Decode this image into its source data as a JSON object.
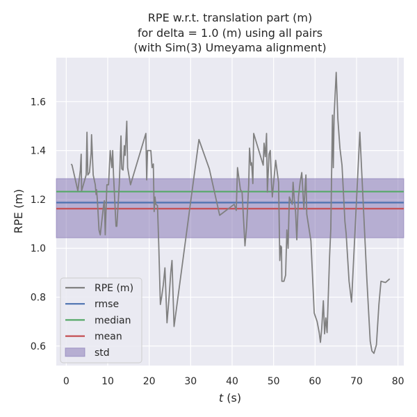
{
  "chart_data": {
    "type": "line",
    "title_lines": [
      "RPE w.r.t. translation part (m)",
      "for delta = 1.0 (m) using all pairs",
      "(with Sim(3) Umeyama alignment)"
    ],
    "xlabel_italic": "t",
    "xlabel_suffix": " (s)",
    "ylabel": "RPE (m)",
    "xlim": [
      -2.4,
      81.4
    ],
    "ylim": [
      0.52,
      1.78
    ],
    "xticks": [
      0,
      10,
      20,
      30,
      40,
      50,
      60,
      70,
      80
    ],
    "yticks": [
      0.6,
      0.8,
      1.0,
      1.2,
      1.4,
      1.6
    ],
    "ytick_labels": [
      "0.6",
      "0.8",
      "1.0",
      "1.2",
      "1.4",
      "1.6"
    ],
    "grid": true,
    "legend_position": "lower-left",
    "colors": {
      "background": "#EAEAF2",
      "grid": "#FFFFFF",
      "rpe": "#808080",
      "rmse": "#4C72B0",
      "median": "#55A868",
      "mean": "#C44E52",
      "std_band": "#8172B2"
    },
    "legend": [
      {
        "label": "RPE (m)",
        "kind": "line",
        "color_key": "rpe"
      },
      {
        "label": "rmse",
        "kind": "line",
        "color_key": "rmse"
      },
      {
        "label": "median",
        "kind": "line",
        "color_key": "median"
      },
      {
        "label": "mean",
        "kind": "line",
        "color_key": "mean"
      },
      {
        "label": "std",
        "kind": "patch",
        "color_key": "std_band"
      }
    ],
    "stats": {
      "rmse": 1.187,
      "median": 1.232,
      "mean": 1.162,
      "std_band": [
        1.043,
        1.285
      ]
    },
    "series": [
      {
        "name": "RPE (m)",
        "points": [
          [
            1.2,
            1.345
          ],
          [
            1.4,
            1.34
          ],
          [
            2.8,
            1.235
          ],
          [
            3.4,
            1.32
          ],
          [
            3.6,
            1.385
          ],
          [
            3.7,
            1.235
          ],
          [
            4.8,
            1.3
          ],
          [
            5.0,
            1.475
          ],
          [
            5.2,
            1.3
          ],
          [
            5.6,
            1.31
          ],
          [
            6.0,
            1.39
          ],
          [
            6.1,
            1.465
          ],
          [
            6.5,
            1.3
          ],
          [
            7.0,
            1.26
          ],
          [
            7.2,
            1.22
          ],
          [
            7.3,
            1.24
          ],
          [
            7.5,
            1.2
          ],
          [
            7.9,
            1.075
          ],
          [
            8.2,
            1.055
          ],
          [
            8.5,
            1.1
          ],
          [
            9.0,
            1.175
          ],
          [
            9.2,
            1.195
          ],
          [
            9.4,
            1.055
          ],
          [
            9.8,
            1.26
          ],
          [
            10.2,
            1.26
          ],
          [
            10.6,
            1.4
          ],
          [
            11.0,
            1.33
          ],
          [
            11.2,
            1.4
          ],
          [
            11.4,
            1.3
          ],
          [
            12.0,
            1.09
          ],
          [
            12.2,
            1.09
          ],
          [
            12.8,
            1.265
          ],
          [
            13.2,
            1.46
          ],
          [
            13.4,
            1.325
          ],
          [
            13.7,
            1.32
          ],
          [
            14.0,
            1.42
          ],
          [
            14.2,
            1.38
          ],
          [
            14.6,
            1.52
          ],
          [
            14.8,
            1.33
          ],
          [
            15.5,
            1.26
          ],
          [
            19.2,
            1.47
          ],
          [
            19.4,
            1.28
          ],
          [
            19.6,
            1.4
          ],
          [
            20.4,
            1.4
          ],
          [
            20.7,
            1.33
          ],
          [
            21.0,
            1.345
          ],
          [
            21.2,
            1.15
          ],
          [
            21.4,
            1.21
          ],
          [
            21.6,
            1.18
          ],
          [
            22.0,
            1.175
          ],
          [
            22.3,
            1.02
          ],
          [
            22.7,
            0.77
          ],
          [
            23.0,
            0.8
          ],
          [
            23.4,
            0.85
          ],
          [
            23.8,
            0.92
          ],
          [
            24.3,
            0.695
          ],
          [
            24.8,
            0.8
          ],
          [
            25.2,
            0.9
          ],
          [
            25.5,
            0.95
          ],
          [
            26.0,
            0.68
          ],
          [
            32.0,
            1.445
          ],
          [
            34.5,
            1.325
          ],
          [
            37.0,
            1.135
          ],
          [
            40.5,
            1.18
          ],
          [
            41.0,
            1.155
          ],
          [
            41.3,
            1.33
          ],
          [
            42.0,
            1.24
          ],
          [
            42.4,
            1.23
          ],
          [
            43.1,
            1.01
          ],
          [
            43.5,
            1.09
          ],
          [
            44.0,
            1.26
          ],
          [
            44.2,
            1.41
          ],
          [
            44.5,
            1.34
          ],
          [
            44.7,
            1.35
          ],
          [
            45.0,
            1.265
          ],
          [
            45.2,
            1.47
          ],
          [
            47.5,
            1.34
          ],
          [
            47.7,
            1.43
          ],
          [
            48.0,
            1.375
          ],
          [
            48.3,
            1.47
          ],
          [
            48.5,
            1.23
          ],
          [
            48.9,
            1.385
          ],
          [
            49.2,
            1.4
          ],
          [
            49.5,
            1.265
          ],
          [
            49.7,
            1.21
          ],
          [
            50.5,
            1.36
          ],
          [
            51.2,
            1.27
          ],
          [
            51.5,
            0.95
          ],
          [
            51.7,
            1.01
          ],
          [
            51.9,
            1.005
          ],
          [
            52.0,
            0.865
          ],
          [
            52.5,
            0.865
          ],
          [
            52.9,
            0.89
          ],
          [
            53.2,
            1.075
          ],
          [
            53.5,
            1.0
          ],
          [
            53.8,
            1.21
          ],
          [
            54.5,
            1.18
          ],
          [
            54.7,
            1.27
          ],
          [
            55.0,
            1.2
          ],
          [
            55.3,
            1.15
          ],
          [
            55.6,
            1.035
          ],
          [
            56.0,
            1.21
          ],
          [
            56.4,
            1.27
          ],
          [
            56.8,
            1.31
          ],
          [
            57.3,
            1.16
          ],
          [
            57.8,
            1.3
          ],
          [
            58.0,
            1.14
          ],
          [
            59.0,
            1.03
          ],
          [
            59.8,
            0.735
          ],
          [
            60.5,
            0.7
          ],
          [
            61.0,
            0.655
          ],
          [
            61.3,
            0.615
          ],
          [
            61.6,
            0.67
          ],
          [
            62.0,
            0.785
          ],
          [
            62.3,
            0.65
          ],
          [
            62.6,
            0.715
          ],
          [
            62.9,
            0.655
          ],
          [
            63.5,
            0.965
          ],
          [
            63.8,
            1.08
          ],
          [
            64.2,
            1.545
          ],
          [
            64.4,
            1.33
          ],
          [
            64.6,
            1.545
          ],
          [
            65.1,
            1.72
          ],
          [
            65.5,
            1.53
          ],
          [
            66.0,
            1.41
          ],
          [
            66.5,
            1.34
          ],
          [
            67.2,
            1.11
          ],
          [
            67.5,
            1.06
          ],
          [
            68.2,
            0.865
          ],
          [
            68.8,
            0.78
          ],
          [
            70.8,
            1.475
          ],
          [
            72.5,
            0.87
          ],
          [
            73.3,
            0.62
          ],
          [
            73.7,
            0.58
          ],
          [
            74.2,
            0.57
          ],
          [
            74.8,
            0.605
          ],
          [
            75.4,
            0.77
          ],
          [
            75.9,
            0.865
          ],
          [
            77.0,
            0.86
          ],
          [
            78.0,
            0.875
          ]
        ]
      }
    ]
  }
}
